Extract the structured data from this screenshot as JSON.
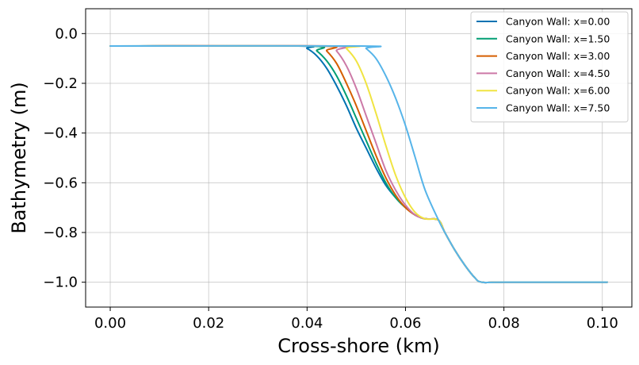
{
  "chart_data": {
    "type": "line",
    "title": "",
    "xlabel": "Cross-shore (km)",
    "ylabel": "Bathymetry (m)",
    "xlim": [
      -0.005,
      0.106
    ],
    "ylim": [
      -1.1,
      0.1
    ],
    "xticks": [
      0.0,
      0.02,
      0.04,
      0.06,
      0.08,
      0.1
    ],
    "xtick_labels": [
      "0.00",
      "0.02",
      "0.04",
      "0.06",
      "0.08",
      "0.10"
    ],
    "yticks": [
      0.0,
      -0.2,
      -0.4,
      -0.6,
      -0.8,
      -1.0
    ],
    "ytick_labels": [
      "0.0",
      "−0.2",
      "−0.4",
      "−0.6",
      "−0.8",
      "−1.0"
    ],
    "grid": true,
    "legend_position": "top-right",
    "series": [
      {
        "name": "Canyon Wall: x=0.00",
        "color": "#0072B2",
        "x": [
          0.0,
          0.038,
          0.04,
          0.042,
          0.044,
          0.046,
          0.048,
          0.05,
          0.052,
          0.054,
          0.056,
          0.058,
          0.06,
          0.062,
          0.064,
          0.0667,
          0.068,
          0.07,
          0.072,
          0.074,
          0.0755,
          0.08,
          0.101
        ],
        "y": [
          -0.05,
          -0.05,
          -0.06,
          -0.09,
          -0.14,
          -0.21,
          -0.29,
          -0.38,
          -0.46,
          -0.54,
          -0.61,
          -0.66,
          -0.7,
          -0.73,
          -0.745,
          -0.75,
          -0.8,
          -0.87,
          -0.93,
          -0.98,
          -1.0,
          -1.0,
          -1.0
        ]
      },
      {
        "name": "Canyon Wall: x=1.50",
        "color": "#009E73",
        "x": [
          0.0,
          0.04,
          0.042,
          0.044,
          0.046,
          0.048,
          0.05,
          0.052,
          0.054,
          0.056,
          0.058,
          0.06,
          0.062,
          0.064,
          0.0667,
          0.068,
          0.07,
          0.072,
          0.074,
          0.0755,
          0.08,
          0.101
        ],
        "y": [
          -0.05,
          -0.05,
          -0.07,
          -0.11,
          -0.17,
          -0.25,
          -0.34,
          -0.43,
          -0.52,
          -0.6,
          -0.66,
          -0.7,
          -0.73,
          -0.745,
          -0.75,
          -0.8,
          -0.87,
          -0.93,
          -0.98,
          -1.0,
          -1.0,
          -1.0
        ]
      },
      {
        "name": "Canyon Wall: x=3.00",
        "color": "#D55E00",
        "x": [
          0.0,
          0.0425,
          0.044,
          0.046,
          0.048,
          0.05,
          0.052,
          0.054,
          0.056,
          0.058,
          0.06,
          0.062,
          0.064,
          0.0667,
          0.068,
          0.07,
          0.072,
          0.074,
          0.0755,
          0.08,
          0.101
        ],
        "y": [
          -0.05,
          -0.05,
          -0.07,
          -0.12,
          -0.2,
          -0.29,
          -0.39,
          -0.49,
          -0.58,
          -0.65,
          -0.7,
          -0.73,
          -0.745,
          -0.75,
          -0.8,
          -0.87,
          -0.93,
          -0.98,
          -1.0,
          -1.0,
          -1.0
        ]
      },
      {
        "name": "Canyon Wall: x=4.50",
        "color": "#CC79A7",
        "x": [
          0.0,
          0.0445,
          0.046,
          0.048,
          0.05,
          0.052,
          0.054,
          0.056,
          0.058,
          0.06,
          0.062,
          0.064,
          0.0667,
          0.068,
          0.07,
          0.072,
          0.074,
          0.0755,
          0.08,
          0.101
        ],
        "y": [
          -0.05,
          -0.05,
          -0.07,
          -0.13,
          -0.22,
          -0.33,
          -0.44,
          -0.55,
          -0.63,
          -0.69,
          -0.73,
          -0.745,
          -0.75,
          -0.8,
          -0.87,
          -0.93,
          -0.98,
          -1.0,
          -1.0,
          -1.0
        ]
      },
      {
        "name": "Canyon Wall: x=6.00",
        "color": "#F0E442",
        "x": [
          0.0,
          0.047,
          0.048,
          0.05,
          0.052,
          0.054,
          0.056,
          0.058,
          0.06,
          0.062,
          0.064,
          0.0667,
          0.068,
          0.07,
          0.072,
          0.074,
          0.0755,
          0.08,
          0.101
        ],
        "y": [
          -0.05,
          -0.05,
          -0.06,
          -0.11,
          -0.2,
          -0.32,
          -0.45,
          -0.57,
          -0.66,
          -0.72,
          -0.745,
          -0.75,
          -0.8,
          -0.87,
          -0.93,
          -0.98,
          -1.0,
          -1.0,
          -1.0
        ]
      },
      {
        "name": "Canyon Wall: x=7.50",
        "color": "#56B4E9",
        "x": [
          0.0,
          0.051,
          0.052,
          0.054,
          0.056,
          0.058,
          0.06,
          0.062,
          0.064,
          0.0667,
          0.068,
          0.07,
          0.072,
          0.074,
          0.0755,
          0.08,
          0.101
        ],
        "y": [
          -0.05,
          -0.05,
          -0.06,
          -0.1,
          -0.17,
          -0.26,
          -0.37,
          -0.5,
          -0.63,
          -0.75,
          -0.8,
          -0.87,
          -0.93,
          -0.98,
          -1.0,
          -1.0,
          -1.0
        ]
      }
    ]
  }
}
